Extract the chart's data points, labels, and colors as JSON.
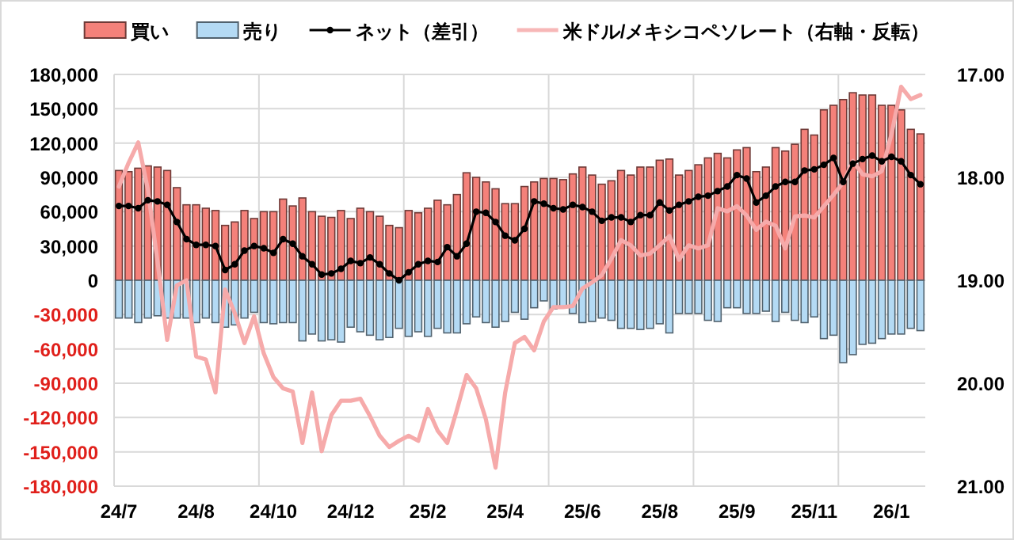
{
  "chart_data": {
    "type": "bar",
    "stacked": true,
    "legend": "top",
    "grid": true,
    "categories": [
      "24/7",
      null,
      null,
      null,
      null,
      null,
      null,
      null,
      "24/8",
      null,
      null,
      null,
      null,
      null,
      null,
      null,
      "24/10",
      null,
      null,
      null,
      null,
      null,
      null,
      null,
      "24/12",
      null,
      null,
      null,
      null,
      null,
      null,
      null,
      "25/2",
      null,
      null,
      null,
      null,
      null,
      null,
      null,
      "25/4",
      null,
      null,
      null,
      null,
      null,
      null,
      null,
      "25/6",
      null,
      null,
      null,
      null,
      null,
      null,
      null,
      "25/8",
      null,
      null,
      null,
      null,
      null,
      null,
      null,
      "25/9",
      null,
      null,
      null,
      null,
      null,
      null,
      null,
      "25/11",
      null,
      null,
      null,
      null,
      null,
      null,
      null,
      "26/1",
      null,
      null,
      null
    ],
    "ylim": [
      -180000,
      180000
    ],
    "yticks": [
      {
        "value": -180000,
        "label": "-180,000"
      },
      {
        "value": -150000,
        "label": "-150,000"
      },
      {
        "value": -120000,
        "label": "-120,000"
      },
      {
        "value": -90000,
        "label": "-90,000"
      },
      {
        "value": -60000,
        "label": "-60,000"
      },
      {
        "value": -30000,
        "label": "-30,000"
      },
      0,
      {
        "value": 30000,
        "label": "30,000"
      },
      {
        "value": 60000,
        "label": "60,000"
      },
      {
        "value": 90000,
        "label": "90,000"
      },
      {
        "value": 120000,
        "label": "120,000"
      },
      {
        "value": 150000,
        "label": "150,000"
      },
      {
        "value": 180000,
        "label": "180,000"
      }
    ],
    "y2lim": [
      21,
      17
    ],
    "y2ticks": [
      {
        "value": 21,
        "label": "21.00"
      },
      {
        "value": 20,
        "label": "20.00"
      },
      {
        "value": 19,
        "label": "19.00"
      },
      {
        "value": 18,
        "label": "18.00"
      },
      {
        "value": 17,
        "label": "17.00"
      }
    ],
    "series": [
      {
        "name": "買い",
        "color": "#f4817a",
        "values": [
          96000,
          95000,
          98000,
          100000,
          99000,
          96000,
          81000,
          66000,
          66000,
          63000,
          61000,
          48000,
          51000,
          61000,
          54000,
          60000,
          60000,
          71000,
          65000,
          72000,
          60000,
          56000,
          55000,
          61000,
          54000,
          63000,
          60000,
          56000,
          48000,
          46000,
          61000,
          59000,
          63000,
          70000,
          66000,
          75000,
          94000,
          90000,
          86000,
          80000,
          67000,
          67000,
          82000,
          86000,
          89000,
          89000,
          88000,
          93000,
          99000,
          92000,
          84000,
          87000,
          96000,
          92000,
          99000,
          99000,
          105000,
          106000,
          92000,
          96000,
          101000,
          107000,
          111000,
          107000,
          114000,
          116000,
          95000,
          99000,
          116000,
          113000,
          119000,
          132000,
          127000,
          149000,
          153000,
          158000,
          164000,
          162000,
          162000,
          153000,
          153000,
          149000,
          132000,
          128000
        ]
      },
      {
        "name": "売り",
        "color": "#b4daf4",
        "values": [
          -33000,
          -33000,
          -37000,
          -33000,
          -31000,
          -33000,
          -33000,
          -33000,
          -37000,
          -33000,
          -37000,
          -41000,
          -39000,
          -33000,
          -28000,
          -37000,
          -38000,
          -37000,
          -37000,
          -53000,
          -47000,
          -53000,
          -52000,
          -54000,
          -41000,
          -45000,
          -48000,
          -52000,
          -50000,
          -42000,
          -49000,
          -45000,
          -49000,
          -42000,
          -46000,
          -46000,
          -38000,
          -32000,
          -37000,
          -41000,
          -36000,
          -28000,
          -34000,
          -24000,
          -18000,
          -25000,
          -24000,
          -29000,
          -37000,
          -36000,
          -33000,
          -35000,
          -42000,
          -42000,
          -43000,
          -42000,
          -38000,
          -46000,
          -29000,
          -29000,
          -29000,
          -35000,
          -36000,
          -24000,
          -24000,
          -29000,
          -29000,
          -27000,
          -36000,
          -28000,
          -35000,
          -37000,
          -32000,
          -51000,
          -48000,
          -72000,
          -65000,
          -56000,
          -55000,
          -51000,
          -47000,
          -47000,
          -42000,
          -44000
        ]
      },
      {
        "name": "ネット（差引）",
        "type": "line",
        "marker": "circle",
        "color": "#000000",
        "values": [
          65000,
          65000,
          63000,
          70000,
          69000,
          66000,
          51000,
          36000,
          31000,
          31000,
          30000,
          9000,
          14000,
          26000,
          30000,
          28000,
          24000,
          36000,
          32000,
          21000,
          14000,
          5000,
          6000,
          10000,
          17000,
          15000,
          20000,
          14000,
          6000,
          0,
          7000,
          14000,
          17000,
          16000,
          29000,
          21000,
          32000,
          60000,
          59000,
          51000,
          39000,
          35000,
          45000,
          69000,
          67000,
          63000,
          62000,
          66000,
          64000,
          60000,
          52000,
          55000,
          55000,
          51000,
          57000,
          57000,
          68000,
          61000,
          66000,
          69000,
          73000,
          74000,
          78000,
          82000,
          92000,
          89000,
          68000,
          74000,
          82000,
          86000,
          86000,
          96000,
          97000,
          101000,
          107000,
          86000,
          102000,
          106000,
          109000,
          104000,
          108000,
          104000,
          92000,
          84000
        ]
      },
      {
        "name": "米ドル/メキシコペソレート（右軸・反転）",
        "type": "line",
        "axis": "y2",
        "marker": "none",
        "color": "#f6aaaa",
        "values": [
          18.09,
          17.86,
          17.66,
          18.12,
          18.82,
          19.58,
          19.05,
          19.0,
          19.74,
          19.77,
          20.09,
          19.09,
          19.32,
          19.61,
          19.35,
          19.71,
          19.94,
          20.05,
          20.08,
          20.58,
          20.09,
          20.66,
          20.31,
          20.17,
          20.17,
          20.15,
          20.32,
          20.51,
          20.62,
          20.56,
          20.51,
          20.56,
          20.25,
          20.46,
          20.58,
          20.26,
          19.92,
          20.05,
          20.35,
          20.82,
          20.09,
          19.61,
          19.55,
          19.68,
          19.4,
          19.26,
          19.26,
          19.25,
          19.08,
          19.02,
          18.95,
          18.79,
          18.61,
          18.66,
          18.76,
          18.74,
          18.66,
          18.57,
          18.8,
          18.66,
          18.69,
          18.66,
          18.3,
          18.33,
          18.28,
          18.37,
          18.51,
          18.43,
          18.47,
          18.69,
          18.38,
          18.37,
          18.39,
          18.28,
          18.17,
          18.05,
          17.84,
          17.97,
          17.99,
          17.94,
          17.58,
          17.12,
          17.24,
          17.2
        ]
      }
    ]
  }
}
